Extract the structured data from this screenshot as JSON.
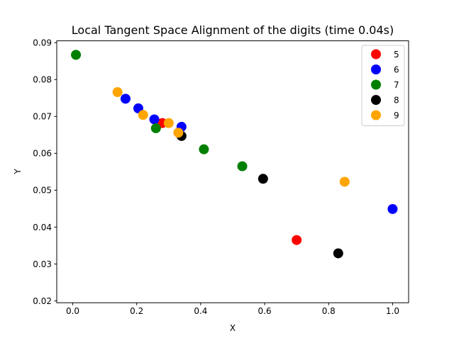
{
  "chart_data": {
    "type": "scatter",
    "title": "Local Tangent Space Alignment of the digits (time 0.04s)",
    "xlabel": "X",
    "ylabel": "Y",
    "xlim": [
      -0.05,
      1.05
    ],
    "ylim": [
      0.0195,
      0.0905
    ],
    "xticks": [
      "0.0",
      "0.2",
      "0.4",
      "0.6",
      "0.8",
      "1.0"
    ],
    "xtick_values": [
      0.0,
      0.2,
      0.4,
      0.6,
      0.8,
      1.0
    ],
    "yticks": [
      "0.02",
      "0.03",
      "0.04",
      "0.05",
      "0.06",
      "0.07",
      "0.08",
      "0.09"
    ],
    "ytick_values": [
      0.02,
      0.03,
      0.04,
      0.05,
      0.06,
      0.07,
      0.08,
      0.09
    ],
    "grid": false,
    "legend_position": "top-right",
    "series": [
      {
        "name": "5",
        "color": "#ff0000",
        "points": [
          [
            0.28,
            0.0682
          ],
          [
            0.7,
            0.0365
          ]
        ]
      },
      {
        "name": "6",
        "color": "#0000ff",
        "points": [
          [
            0.165,
            0.0748
          ],
          [
            0.205,
            0.0722
          ],
          [
            0.255,
            0.0692
          ],
          [
            0.34,
            0.0672
          ],
          [
            1.0,
            0.0449
          ]
        ]
      },
      {
        "name": "7",
        "color": "#008000",
        "points": [
          [
            0.01,
            0.0867
          ],
          [
            0.26,
            0.0668
          ],
          [
            0.41,
            0.0611
          ],
          [
            0.53,
            0.0565
          ]
        ]
      },
      {
        "name": "8",
        "color": "#000000",
        "points": [
          [
            0.34,
            0.0647
          ],
          [
            0.595,
            0.0531
          ],
          [
            0.83,
            0.0329
          ]
        ]
      },
      {
        "name": "9",
        "color": "#ffa500",
        "points": [
          [
            0.14,
            0.0766
          ],
          [
            0.22,
            0.0704
          ],
          [
            0.3,
            0.0682
          ],
          [
            0.33,
            0.0656
          ],
          [
            0.85,
            0.0523
          ]
        ]
      }
    ]
  }
}
